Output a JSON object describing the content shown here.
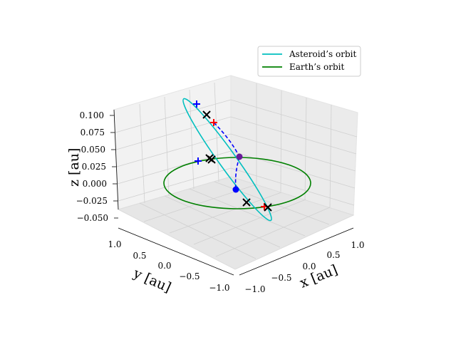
{
  "chart_data": {
    "type": "line",
    "projection": "3d",
    "title": "",
    "axes": {
      "x": {
        "label": "x [au]",
        "ticks": [
          "−1.0",
          "−0.5",
          "0.0",
          "0.5",
          "1.0"
        ],
        "lim": [
          -1.1,
          1.1
        ]
      },
      "y": {
        "label": "y [au]",
        "ticks": [
          "−1.0",
          "−0.5",
          "0.0",
          "0.5",
          "1.0"
        ],
        "lim": [
          -1.1,
          1.1
        ]
      },
      "z": {
        "label": "z [au]",
        "ticks": [
          "−0.050",
          "−0.025",
          "0.000",
          "0.025",
          "0.050",
          "0.075",
          "0.100"
        ],
        "lim": [
          -0.06,
          0.11
        ]
      }
    },
    "grid": true,
    "legend": {
      "placement": "top-right",
      "entries": [
        "Asteroid’s orbit",
        "Earth’s orbit"
      ]
    },
    "series": [
      {
        "name": "Asteroid’s orbit",
        "kind": "ellipse",
        "color": "#00bfbf"
      },
      {
        "name": "Earth’s orbit",
        "kind": "circle",
        "radius": 1.0,
        "color": "#008000"
      }
    ],
    "markers": [
      {
        "symbol": "plus",
        "color": "#0000ff"
      },
      {
        "symbol": "plus",
        "color": "#0000ff"
      },
      {
        "symbol": "plus",
        "color": "#ff0000"
      },
      {
        "symbol": "plus",
        "color": "#ff0000"
      },
      {
        "symbol": "x",
        "color": "#000000"
      },
      {
        "symbol": "x",
        "color": "#000000"
      },
      {
        "symbol": "x",
        "color": "#000000"
      },
      {
        "symbol": "x",
        "color": "#000000"
      },
      {
        "symbol": "x",
        "color": "#000000"
      },
      {
        "symbol": "dot",
        "color": "#0000ff"
      },
      {
        "symbol": "dot",
        "color": "#6a1b9a"
      }
    ],
    "colors": {
      "pane": "#f2f2f2",
      "grid": "#d0d0d0",
      "dashed": "#0000ff"
    }
  }
}
